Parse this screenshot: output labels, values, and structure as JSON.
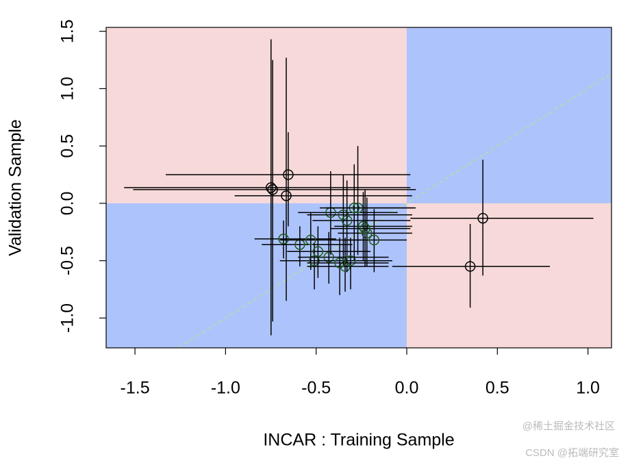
{
  "chart_data": {
    "type": "scatter",
    "xlabel": "INCAR : Training Sample",
    "ylabel": "Validation Sample",
    "xlim": [
      -1.659,
      1.13
    ],
    "ylim": [
      -1.26,
      1.534
    ],
    "xticks": [
      -1.5,
      -1.0,
      -0.5,
      0.0,
      0.5,
      1.0
    ],
    "yticks": [
      -1.0,
      -0.5,
      0.0,
      0.5,
      1.0,
      1.5
    ],
    "quadrant_colors": {
      "mixed": "#f7d9d9",
      "same": "#adc3fb"
    },
    "diagonal_color": "#b7dea0",
    "x": [
      -0.749,
      -0.74,
      -0.654,
      -0.665,
      0.42,
      0.35,
      -0.68,
      -0.59,
      -0.53,
      -0.51,
      -0.49,
      -0.43,
      -0.42,
      -0.34,
      -0.35,
      -0.33,
      -0.31,
      -0.29,
      -0.27,
      -0.24,
      -0.22,
      -0.18,
      -0.23,
      -0.37
    ],
    "y": [
      0.137,
      0.12,
      0.25,
      0.066,
      -0.13,
      -0.55,
      -0.31,
      -0.36,
      -0.32,
      -0.5,
      -0.42,
      -0.47,
      -0.08,
      -0.55,
      -0.1,
      -0.15,
      -0.5,
      -0.04,
      -0.04,
      -0.2,
      -0.26,
      -0.32,
      -0.22,
      -0.52
    ],
    "x_low": [
      -1.56,
      -1.51,
      -1.33,
      -0.95,
      0.02,
      -0.08,
      -0.84,
      -0.8,
      -0.7,
      -0.7,
      -0.66,
      -0.6,
      -0.6,
      -0.55,
      -0.55,
      -0.52,
      -0.5,
      -0.48,
      -0.45,
      -0.4,
      -0.38,
      -0.35,
      -0.42,
      -0.55
    ],
    "x_high": [
      0.02,
      0.05,
      0.02,
      0.03,
      1.03,
      0.79,
      -0.39,
      -0.3,
      -0.25,
      -0.15,
      -0.2,
      -0.1,
      -0.05,
      -0.1,
      0.03,
      0.02,
      -0.08,
      0.05,
      0.04,
      0.03,
      0.03,
      0.0,
      0.02,
      -0.1
    ],
    "y_low": [
      -1.15,
      -1.03,
      -0.2,
      -0.85,
      -0.63,
      -0.91,
      -0.48,
      -0.55,
      -0.58,
      -0.75,
      -0.65,
      -0.7,
      -0.45,
      -0.77,
      -0.55,
      -0.6,
      -0.75,
      -0.5,
      -0.45,
      -0.5,
      -0.55,
      -0.6,
      -0.55,
      -0.8
    ],
    "y_high": [
      1.43,
      1.25,
      0.62,
      1.27,
      0.38,
      -0.18,
      -0.15,
      -0.2,
      -0.08,
      -0.35,
      -0.2,
      -0.25,
      0.28,
      -0.3,
      0.25,
      0.2,
      -0.3,
      0.34,
      0.5,
      0.1,
      0.05,
      -0.05,
      0.12,
      -0.3
    ],
    "colors": [
      "#000000",
      "#000000",
      "#000000",
      "#000000",
      "#000000",
      "#000000",
      "#1d5a1d",
      "#1d5a1d",
      "#1d5a1d",
      "#1d5a1d",
      "#1d5a1d",
      "#1d5a1d",
      "#1d5a1d",
      "#1d5a1d",
      "#1d5a1d",
      "#1d5a1d",
      "#1d5a1d",
      "#1d5a1d",
      "#1d5a1d",
      "#1d5a1d",
      "#1d5a1d",
      "#1d5a1d",
      "#1d5a1d",
      "#1d5a1d"
    ]
  },
  "watermark": [
    "@稀土掘金技术社区",
    "CSDN @拓端研究室"
  ]
}
